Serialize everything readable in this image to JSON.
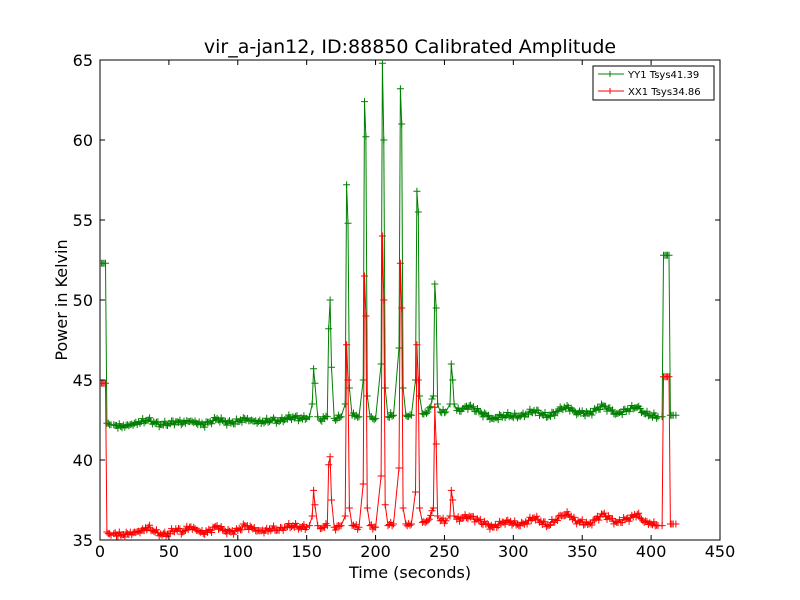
{
  "chart_data": {
    "type": "line",
    "title": "vir_a-jan12, ID:88850 Calibrated Amplitude",
    "xlabel": "Time (seconds)",
    "ylabel": "Power in Kelvin",
    "xlim": [
      0,
      450
    ],
    "ylim": [
      35,
      65
    ],
    "x_ticks": [
      "0",
      "50",
      "100",
      "150",
      "200",
      "250",
      "300",
      "350",
      "400",
      "450"
    ],
    "y_ticks": [
      "35",
      "40",
      "45",
      "50",
      "55",
      "60",
      "65"
    ],
    "grid": false,
    "legend_position": "top-right",
    "marker": "+",
    "series": [
      {
        "name": "YY1 Tsys41.39",
        "color": "#008000",
        "baseline": {
          "start": 42.2,
          "end": 42.9,
          "amplitude": 0.45,
          "period": 26
        },
        "x": [
          1,
          2,
          3,
          4,
          5,
          6,
          7,
          8,
          10,
          15,
          20,
          25,
          30,
          35,
          40,
          45,
          50,
          55,
          60,
          65,
          70,
          75,
          80,
          85,
          90,
          95,
          100,
          105,
          110,
          115,
          120,
          125,
          130,
          135,
          140,
          145,
          150,
          152,
          154,
          155,
          156,
          158,
          160,
          165,
          166,
          167,
          168,
          170,
          175,
          178,
          179,
          180,
          181,
          183,
          188,
          191,
          192,
          193,
          194,
          196,
          200,
          204,
          205,
          206,
          207,
          209,
          213,
          217,
          218,
          219,
          220,
          222,
          226,
          229,
          230,
          231,
          232,
          234,
          238,
          242,
          243,
          244,
          245,
          247,
          251,
          254,
          255,
          256,
          257,
          259,
          263,
          268,
          275,
          285,
          295,
          305,
          315,
          325,
          335,
          340,
          345,
          355,
          365,
          375,
          385,
          390,
          395,
          400,
          405,
          408,
          409,
          410,
          411,
          412,
          413,
          414,
          415,
          416,
          418
        ],
        "y": [
          52.3,
          52.3,
          52.3,
          52.3,
          42.3,
          42.3,
          42.2,
          42.2,
          42.2,
          42.1,
          42.2,
          42.3,
          42.4,
          42.5,
          42.3,
          42.2,
          42.3,
          42.4,
          42.3,
          42.4,
          42.3,
          42.2,
          42.4,
          42.6,
          42.4,
          42.3,
          42.4,
          42.6,
          42.5,
          42.4,
          42.4,
          42.5,
          42.4,
          42.6,
          42.7,
          42.6,
          42.6,
          42.7,
          43.5,
          45.7,
          44.8,
          42.7,
          42.5,
          42.7,
          48.2,
          50.0,
          45.8,
          42.6,
          42.7,
          43.5,
          57.2,
          54.8,
          44.5,
          42.8,
          42.7,
          45.0,
          62.4,
          60.2,
          44.0,
          42.7,
          42.6,
          46.0,
          64.8,
          60.0,
          44.5,
          42.7,
          42.8,
          47.0,
          63.2,
          61.0,
          44.5,
          42.8,
          42.8,
          45.0,
          56.8,
          55.5,
          44.0,
          42.9,
          43.0,
          44.0,
          51.0,
          49.5,
          43.5,
          43.0,
          43.0,
          43.5,
          46.0,
          45.0,
          43.5,
          43.1,
          43.2,
          43.4,
          43.0,
          42.6,
          42.8,
          42.7,
          43.1,
          42.7,
          43.2,
          43.3,
          43.0,
          42.9,
          43.4,
          42.9,
          43.2,
          43.3,
          42.9,
          42.8,
          42.7,
          42.7,
          52.8,
          52.8,
          52.8,
          52.8,
          52.8,
          42.8,
          42.8,
          42.8,
          42.8
        ]
      },
      {
        "name": "XX1 Tsys34.86",
        "color": "#ff0000",
        "baseline": {
          "start": 35.4,
          "end": 36.0,
          "amplitude": 0.5,
          "period": 26
        },
        "x": [
          1,
          2,
          3,
          4,
          5,
          6,
          7,
          8,
          10,
          15,
          20,
          25,
          30,
          35,
          40,
          45,
          50,
          55,
          60,
          65,
          70,
          75,
          80,
          85,
          90,
          95,
          100,
          105,
          110,
          115,
          120,
          125,
          130,
          135,
          140,
          145,
          150,
          152,
          154,
          155,
          156,
          158,
          160,
          165,
          166,
          167,
          168,
          170,
          175,
          178,
          179,
          180,
          181,
          183,
          188,
          191,
          192,
          193,
          194,
          196,
          200,
          204,
          205,
          206,
          207,
          209,
          213,
          217,
          218,
          219,
          220,
          222,
          226,
          229,
          230,
          231,
          232,
          234,
          238,
          242,
          243,
          244,
          245,
          247,
          251,
          254,
          255,
          256,
          257,
          259,
          263,
          268,
          275,
          285,
          295,
          305,
          315,
          325,
          335,
          340,
          345,
          355,
          365,
          375,
          385,
          390,
          395,
          400,
          405,
          408,
          409,
          410,
          411,
          412,
          413,
          414,
          415,
          416,
          418
        ],
        "y": [
          44.8,
          44.8,
          44.8,
          44.8,
          35.5,
          35.4,
          35.4,
          35.3,
          35.4,
          35.3,
          35.4,
          35.5,
          35.6,
          35.8,
          35.5,
          35.3,
          35.4,
          35.7,
          35.5,
          35.8,
          35.6,
          35.4,
          35.6,
          35.9,
          35.6,
          35.5,
          35.6,
          35.9,
          35.8,
          35.6,
          35.6,
          35.7,
          35.6,
          35.8,
          35.9,
          35.8,
          35.8,
          35.9,
          36.5,
          38.1,
          37.2,
          35.9,
          35.7,
          35.9,
          39.7,
          40.2,
          37.5,
          35.8,
          35.9,
          36.5,
          47.2,
          45.0,
          37.0,
          35.9,
          35.8,
          38.5,
          51.5,
          49.0,
          37.0,
          35.9,
          35.8,
          39.0,
          54.0,
          50.0,
          37.2,
          35.9,
          36.0,
          39.5,
          52.3,
          49.5,
          37.0,
          36.0,
          36.0,
          38.0,
          47.2,
          45.0,
          37.0,
          36.1,
          36.2,
          37.0,
          43.3,
          41.0,
          36.5,
          36.2,
          36.2,
          36.5,
          38.1,
          37.5,
          36.5,
          36.3,
          36.4,
          36.5,
          36.2,
          35.8,
          36.2,
          35.9,
          36.4,
          35.9,
          36.5,
          36.6,
          36.2,
          36.0,
          36.6,
          36.1,
          36.4,
          36.6,
          36.1,
          36.0,
          35.9,
          35.9,
          45.2,
          45.2,
          45.2,
          45.2,
          45.2,
          36.0,
          36.0,
          36.0,
          36.0
        ]
      }
    ]
  }
}
